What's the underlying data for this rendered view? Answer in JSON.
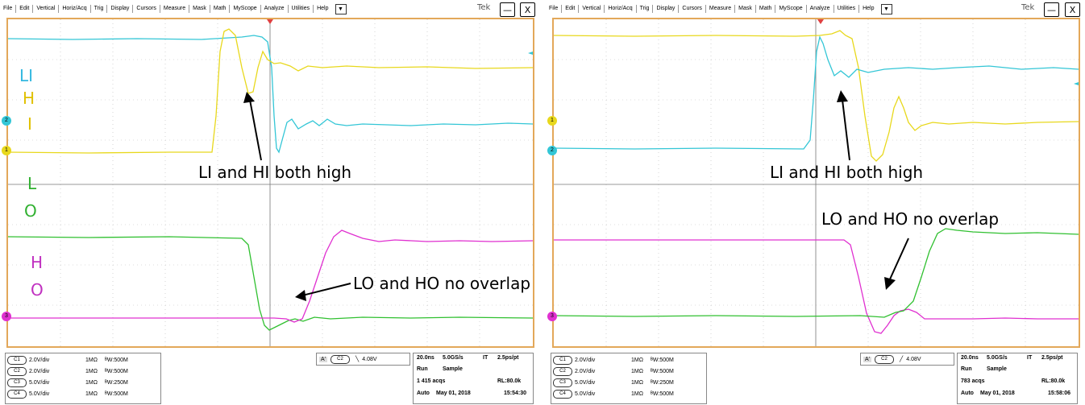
{
  "menu": [
    "File",
    "Edit",
    "Vertical",
    "Horiz/Acq",
    "Trig",
    "Display",
    "Cursors",
    "Measure",
    "Mask",
    "Math",
    "MyScope",
    "Analyze",
    "Utilities",
    "Help"
  ],
  "brand": "Tek",
  "minimize": "—",
  "close": "X",
  "colors": {
    "ch1": "#e8d81c",
    "ch2": "#33c6d6",
    "ch3": "#e030d0",
    "ch4": "#30c030",
    "frame": "#e3a85a",
    "grid": "#bbbbbb"
  },
  "left": {
    "side_labels": [
      {
        "text": "LI",
        "color": "#33b8e0"
      },
      {
        "text": "H",
        "color": "#e0c000"
      },
      {
        "text": "I",
        "color": "#e0c000"
      },
      {
        "text": "L",
        "color": "#30b030"
      },
      {
        "text": "O",
        "color": "#30b030"
      },
      {
        "text": "H",
        "color": "#c030c0"
      },
      {
        "text": "O",
        "color": "#c030c0"
      }
    ],
    "annot1": "LI and HI both high",
    "annot2": "LO and HO no overlap",
    "channels": [
      {
        "id": "C1",
        "scale": "2.0V/div",
        "imp": "1MΩ",
        "bw": "500M"
      },
      {
        "id": "C2",
        "scale": "2.0V/div",
        "imp": "1MΩ",
        "bw": "500M"
      },
      {
        "id": "C3",
        "scale": "5.0V/div",
        "imp": "1MΩ",
        "bw": "250M"
      },
      {
        "id": "C4",
        "scale": "5.0V/div",
        "imp": "1MΩ",
        "bw": "500M"
      }
    ],
    "trigger": {
      "mode": "A'",
      "src": "C2",
      "level": "4.08V"
    },
    "acq": {
      "timebase": "20.0ns",
      "rate": "5.0GS/s",
      "it": "IT",
      "ps": "2.5ps/pt",
      "run": "Run",
      "sample": "Sample",
      "acqs": "1 415 acqs",
      "rl": "RL:80.0k",
      "auto": "Auto",
      "date": "May 01, 2018",
      "time": "15:54:30"
    }
  },
  "right": {
    "annot1": "LI and HI both high",
    "annot2": "LO and HO no overlap",
    "channels": [
      {
        "id": "C1",
        "scale": "2.0V/div",
        "imp": "1MΩ",
        "bw": "500M"
      },
      {
        "id": "C2",
        "scale": "2.0V/div",
        "imp": "1MΩ",
        "bw": "500M"
      },
      {
        "id": "C3",
        "scale": "5.0V/div",
        "imp": "1MΩ",
        "bw": "250M"
      },
      {
        "id": "C4",
        "scale": "5.0V/div",
        "imp": "1MΩ",
        "bw": "500M"
      }
    ],
    "trigger": {
      "mode": "A'",
      "src": "C2",
      "level": "4.08V"
    },
    "acq": {
      "timebase": "20.0ns",
      "rate": "5.0GS/s",
      "it": "IT",
      "ps": "2.5ps/pt",
      "run": "Run",
      "sample": "Sample",
      "acqs": "783 acqs",
      "rl": "RL:80.0k",
      "auto": "Auto",
      "date": "May 01, 2018",
      "time": "15:58:06"
    }
  }
}
